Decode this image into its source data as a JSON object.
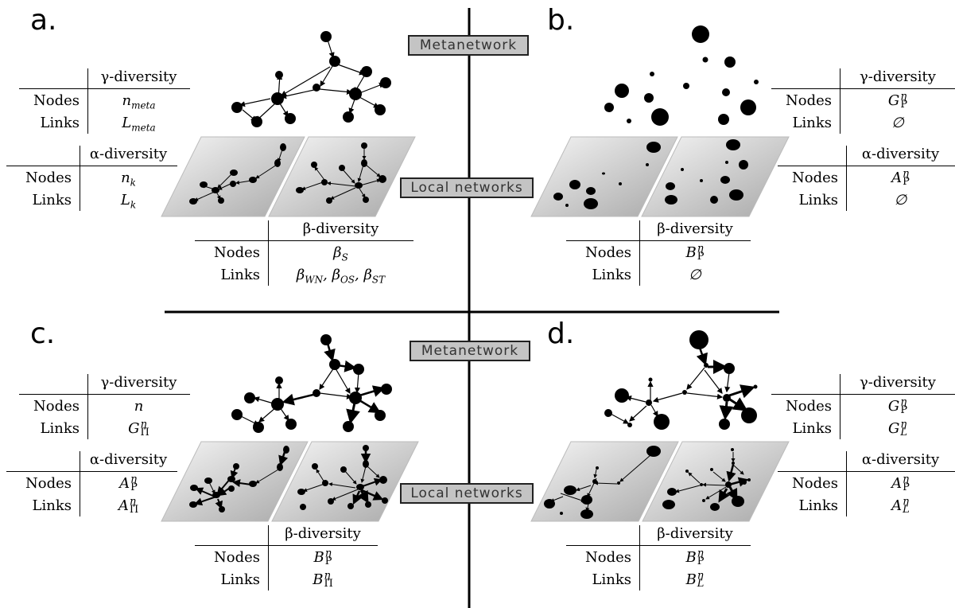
{
  "panels": {
    "a": "a.",
    "b": "b.",
    "c": "c.",
    "d": "d."
  },
  "boxes": {
    "metanetwork": "Metanetwork",
    "local_networks": "Local networks"
  },
  "tables": {
    "a_gamma": {
      "header": "γ-diversity",
      "rows": [
        {
          "label": "Nodes",
          "value": "n_meta"
        },
        {
          "label": "Links",
          "value": "L_meta"
        }
      ]
    },
    "a_alpha": {
      "header": "α-diversity",
      "rows": [
        {
          "label": "Nodes",
          "value": "n_k"
        },
        {
          "label": "Links",
          "value": "L_k"
        }
      ]
    },
    "a_beta": {
      "header": "β-diversity",
      "rows": [
        {
          "label": "Nodes",
          "value": "β_S"
        },
        {
          "label": "Links",
          "value": "β_WN, β_OS, β_ST"
        }
      ]
    },
    "b_gamma": {
      "header": "γ-diversity",
      "rows": [
        {
          "label": "Nodes",
          "value": "G^η_P"
        },
        {
          "label": "Links",
          "value": "∅"
        }
      ]
    },
    "b_alpha": {
      "header": "α-diversity",
      "rows": [
        {
          "label": "Nodes",
          "value": "A^η_P"
        },
        {
          "label": "Links",
          "value": "∅"
        }
      ]
    },
    "b_beta": {
      "header": "β-diversity",
      "rows": [
        {
          "label": "Nodes",
          "value": "B^η_P"
        },
        {
          "label": "Links",
          "value": "∅"
        }
      ]
    },
    "c_gamma": {
      "header": "γ-diversity",
      "rows": [
        {
          "label": "Nodes",
          "value": "n"
        },
        {
          "label": "Links",
          "value": "G^η_Π"
        }
      ]
    },
    "c_alpha": {
      "header": "α-diversity",
      "rows": [
        {
          "label": "Nodes",
          "value": "A^η_P"
        },
        {
          "label": "Links",
          "value": "A^η_Π"
        }
      ]
    },
    "c_beta": {
      "header": "β-diversity",
      "rows": [
        {
          "label": "Nodes",
          "value": "B^η_P"
        },
        {
          "label": "Links",
          "value": "B^η_Π"
        }
      ]
    },
    "d_gamma": {
      "header": "γ-diversity",
      "rows": [
        {
          "label": "Nodes",
          "value": "G^η_P"
        },
        {
          "label": "Links",
          "value": "G^η_L"
        }
      ]
    },
    "d_alpha": {
      "header": "α-diversity",
      "rows": [
        {
          "label": "Nodes",
          "value": "A^η_P"
        },
        {
          "label": "Links",
          "value": "A^η_L"
        }
      ]
    },
    "d_beta": {
      "header": "β-diversity",
      "rows": [
        {
          "label": "Nodes",
          "value": "B^η_P"
        },
        {
          "label": "Links",
          "value": "B^η_L"
        }
      ]
    }
  },
  "colors": {
    "ink": "#000000",
    "box_fill": "#c4c4c4",
    "plane_light": "#f4f4f4",
    "plane_dark": "#aaaaaa"
  }
}
